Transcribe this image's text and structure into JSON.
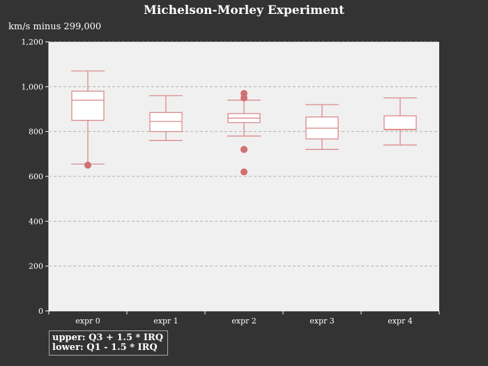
{
  "chart_data": {
    "type": "boxplot",
    "title": "Michelson-Morley Experiment",
    "ylabel": "km/s minus 299,000",
    "ylim": [
      0,
      1200
    ],
    "yticks": [
      0,
      200,
      400,
      600,
      800,
      1000,
      1200
    ],
    "ytick_labels": [
      "0",
      "200",
      "400",
      "600",
      "800",
      "1,000",
      "1,200"
    ],
    "grid": true,
    "categories": [
      "expr 0",
      "expr 1",
      "expr 2",
      "expr 3",
      "expr 4"
    ],
    "boxes": [
      {
        "category": "expr 0",
        "lower": 655,
        "q1": 850,
        "median": 940,
        "q3": 980,
        "upper": 1070,
        "outliers": [
          650
        ]
      },
      {
        "category": "expr 1",
        "lower": 760,
        "q1": 800,
        "median": 845,
        "q3": 885,
        "upper": 960,
        "outliers": []
      },
      {
        "category": "expr 2",
        "lower": 780,
        "q1": 840,
        "median": 860,
        "q3": 880,
        "upper": 940,
        "outliers": [
          970,
          950,
          720,
          720,
          620
        ]
      },
      {
        "category": "expr 3",
        "lower": 720,
        "q1": 767,
        "median": 815,
        "q3": 865,
        "upper": 920,
        "outliers": []
      },
      {
        "category": "expr 4",
        "lower": 740,
        "q1": 808,
        "median": 810,
        "q3": 870,
        "upper": 950,
        "outliers": []
      }
    ],
    "colors": {
      "background": "#333333",
      "plot_area": "#f0f0f0",
      "box_stroke": "#d98080",
      "box_fill": "#ffffff",
      "outlier": "#d07070",
      "grid": "#b0b0b0",
      "text": "#ffffff"
    },
    "legend": {
      "position": "bottom-left",
      "lines": [
        "upper: Q3 + 1.5 * IRQ",
        "lower: Q1 - 1.5 * IRQ"
      ]
    }
  }
}
